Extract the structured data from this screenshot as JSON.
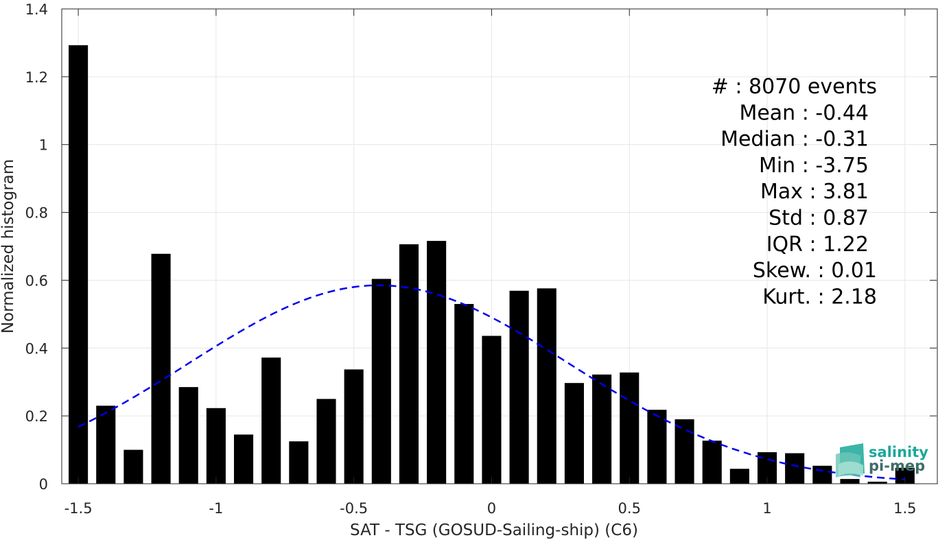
{
  "chart_data": {
    "type": "bar",
    "xlabel": "SAT - TSG (GOSUD-Sailing-ship) (C6)",
    "ylabel": "Normalized histogram",
    "xlim": [
      -1.56,
      1.62
    ],
    "ylim": [
      0,
      1.4
    ],
    "x_ticks": [
      -1.5,
      -1,
      -0.5,
      0,
      0.5,
      1,
      1.5
    ],
    "x_tick_labels": [
      "-1.5",
      "-1",
      "-0.5",
      "0",
      "0.5",
      "1",
      "1.5"
    ],
    "y_ticks": [
      0,
      0.2,
      0.4,
      0.6,
      0.8,
      1,
      1.2,
      1.4
    ],
    "y_tick_labels": [
      "0",
      "0.2",
      "0.4",
      "0.6",
      "0.8",
      "1",
      "1.2",
      "1.4"
    ],
    "grid": true,
    "bar_width": 0.07,
    "bar_color": "#000000",
    "x": [
      -1.5,
      -1.4,
      -1.3,
      -1.2,
      -1.1,
      -1.0,
      -0.9,
      -0.8,
      -0.7,
      -0.6,
      -0.5,
      -0.4,
      -0.3,
      -0.2,
      -0.1,
      0.0,
      0.1,
      0.2,
      0.3,
      0.4,
      0.5,
      0.6,
      0.7,
      0.8,
      0.9,
      1.0,
      1.1,
      1.2,
      1.3,
      1.4,
      1.5
    ],
    "values": [
      1.293,
      0.23,
      0.1,
      0.678,
      0.285,
      0.223,
      0.145,
      0.372,
      0.125,
      0.25,
      0.337,
      0.604,
      0.706,
      0.716,
      0.53,
      0.436,
      0.569,
      0.576,
      0.297,
      0.322,
      0.328,
      0.218,
      0.19,
      0.127,
      0.044,
      0.093,
      0.09,
      0.053,
      0.014,
      0.006,
      0.047
    ],
    "fit_curve": {
      "style": "dashed",
      "color": "#0000ee",
      "mean": -0.41,
      "std": 0.69,
      "x_range": [
        -1.5,
        1.5
      ]
    },
    "stats": [
      {
        "label": "#  : 8070 events",
        "anchor": "end",
        "col": 1278
      },
      {
        "label": "Mean : -0.44",
        "anchor": "end",
        "col": 1266
      },
      {
        "label": "Median : -0.31",
        "anchor": "end",
        "col": 1266
      },
      {
        "label": "Min : -3.75",
        "anchor": "end",
        "col": 1266
      },
      {
        "label": "Max : 3.81",
        "anchor": "end",
        "col": 1266
      },
      {
        "label": "Std : 0.87",
        "anchor": "end",
        "col": 1266
      },
      {
        "label": "IQR : 1.22",
        "anchor": "end",
        "col": 1266
      },
      {
        "label": "Skew. : 0.01",
        "anchor": "end",
        "col": 1278
      },
      {
        "label": "Kurt. : 2.18",
        "anchor": "end",
        "col": 1278
      }
    ]
  },
  "logo": {
    "line1": "salinity",
    "line2": "pi-mep",
    "color1": "#1aa89a",
    "color2": "#3d6e6a"
  }
}
